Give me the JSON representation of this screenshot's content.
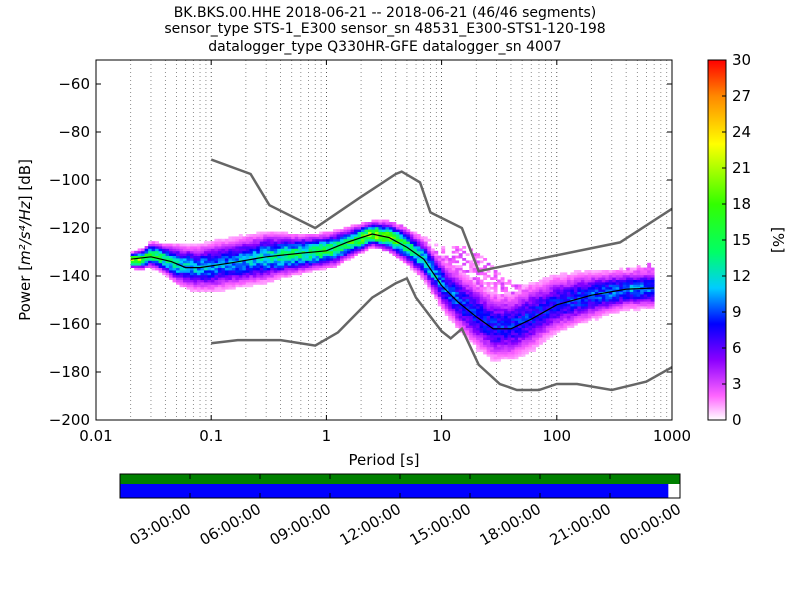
{
  "chart_data": [
    {
      "type": "heatmap",
      "title_lines": [
        "BK.BKS.00.HHE   2018-06-21 -- 2018-06-21  (46/46 segments)",
        "sensor_type STS-1_E300 sensor_sn 48531_E300-STS1-120-198",
        "datalogger_type Q330HR-GFE datalogger_sn 4007"
      ],
      "xlabel": "Period [s]",
      "ylabel_prefix": "Power [",
      "ylabel_units": "m²/s⁴/Hz",
      "ylabel_suffix": "] [dB]",
      "xscale": "log",
      "xlim": [
        0.01,
        1000
      ],
      "ylim": [
        -200,
        -50
      ],
      "xticks": [
        0.01,
        0.1,
        1,
        10,
        100,
        1000
      ],
      "xtick_labels": [
        "0.01",
        "0.1",
        "1",
        "10",
        "100",
        "1000"
      ],
      "yticks": [
        -200,
        -180,
        -160,
        -140,
        -120,
        -100,
        -80,
        -60
      ],
      "ytick_labels": [
        "−200",
        "−180",
        "−160",
        "−140",
        "−120",
        "−100",
        "−80",
        "−60"
      ],
      "grid": "dotted vertical",
      "colorbar": {
        "label": "[%]",
        "range": [
          0,
          30
        ],
        "ticks": [
          0,
          3,
          6,
          9,
          12,
          15,
          18,
          21,
          24,
          27,
          30
        ],
        "tick_labels": [
          "0",
          "3",
          "6",
          "9",
          "12",
          "15",
          "18",
          "21",
          "24",
          "27",
          "30"
        ],
        "colormap": [
          "#ffffff",
          "#ff66ff",
          "#8b00ff",
          "#0000ff",
          "#00ccff",
          "#00ff66",
          "#33ff00",
          "#ffff00",
          "#ff8800",
          "#ff0000"
        ]
      },
      "noise_models": {
        "high": {
          "color": "#666666",
          "points": [
            [
              0.1,
              -91.5
            ],
            [
              0.22,
              -97.5
            ],
            [
              0.32,
              -110.5
            ],
            [
              0.8,
              -120
            ],
            [
              2,
              -107
            ],
            [
              4,
              -97.5
            ],
            [
              4.5,
              -96.5
            ],
            [
              6.5,
              -101
            ],
            [
              8,
              -113.5
            ],
            [
              15,
              -120
            ],
            [
              21,
              -138
            ],
            [
              354,
              -126
            ],
            [
              1000,
              -112
            ]
          ]
        },
        "low": {
          "color": "#666666",
          "points": [
            [
              0.1,
              -168
            ],
            [
              0.17,
              -166.7
            ],
            [
              0.4,
              -166.7
            ],
            [
              0.8,
              -169
            ],
            [
              1.26,
              -163.5
            ],
            [
              2.5,
              -149
            ],
            [
              4,
              -143
            ],
            [
              5,
              -141
            ],
            [
              6,
              -149
            ],
            [
              10,
              -163
            ],
            [
              12,
              -166
            ],
            [
              15,
              -162
            ],
            [
              21,
              -177
            ],
            [
              32,
              -185
            ],
            [
              45,
              -187.5
            ],
            [
              70,
              -187.5
            ],
            [
              100,
              -185
            ],
            [
              150,
              -185
            ],
            [
              300,
              -187.5
            ],
            [
              600,
              -184
            ],
            [
              1000,
              -178
            ]
          ]
        },
        "mean": {
          "color": "#000000",
          "points": [
            [
              0.02,
              -133
            ],
            [
              0.03,
              -132
            ],
            [
              0.045,
              -134
            ],
            [
              0.06,
              -136.5
            ],
            [
              0.08,
              -136.5
            ],
            [
              0.15,
              -134.5
            ],
            [
              0.3,
              -132
            ],
            [
              0.6,
              -130.5
            ],
            [
              1,
              -129.5
            ],
            [
              1.5,
              -126
            ],
            [
              2.5,
              -122.5
            ],
            [
              3.5,
              -124
            ],
            [
              5,
              -128
            ],
            [
              7,
              -133
            ],
            [
              10,
              -144
            ],
            [
              14,
              -151
            ],
            [
              20,
              -157
            ],
            [
              28,
              -162
            ],
            [
              40,
              -162
            ],
            [
              60,
              -158
            ],
            [
              100,
              -152
            ],
            [
              200,
              -148
            ],
            [
              400,
              -145.5
            ],
            [
              700,
              -145
            ]
          ]
        }
      },
      "density": {
        "color_stops": [
          0,
          2,
          5,
          8,
          11,
          14,
          18,
          23,
          27,
          30
        ],
        "main_band": [
          [
            0.02,
            -133.5,
            1.5,
            22
          ],
          [
            0.025,
            -133,
            2,
            18
          ],
          [
            0.03,
            -131,
            2.5,
            16
          ],
          [
            0.04,
            -133,
            3,
            14
          ],
          [
            0.05,
            -135,
            4,
            12
          ],
          [
            0.07,
            -136.5,
            4.5,
            11
          ],
          [
            0.1,
            -136,
            5,
            10
          ],
          [
            0.15,
            -134.5,
            5,
            10
          ],
          [
            0.2,
            -133.5,
            5,
            11
          ],
          [
            0.3,
            -132,
            5,
            12
          ],
          [
            0.5,
            -131,
            4,
            14
          ],
          [
            0.8,
            -130,
            3.5,
            15
          ],
          [
            1.2,
            -128.5,
            3.5,
            15
          ],
          [
            1.7,
            -125.5,
            3,
            16
          ],
          [
            2.5,
            -122.5,
            2.5,
            20
          ],
          [
            3.5,
            -123.5,
            3,
            18
          ],
          [
            5,
            -127.5,
            3.5,
            15
          ],
          [
            7,
            -133,
            4,
            12
          ],
          [
            10,
            -143,
            5,
            10
          ],
          [
            14,
            -150,
            6,
            9
          ],
          [
            20,
            -156,
            7,
            8
          ],
          [
            28,
            -161,
            7,
            8
          ],
          [
            40,
            -161,
            7,
            8
          ],
          [
            60,
            -157,
            7,
            8
          ],
          [
            100,
            -151.5,
            6,
            8
          ],
          [
            200,
            -148,
            5,
            9
          ],
          [
            400,
            -145.5,
            4,
            10
          ],
          [
            700,
            -145,
            4,
            10
          ]
        ],
        "upper_band": [
          [
            2.5,
            -122,
            2.5,
            2
          ],
          [
            4,
            -124,
            4,
            2
          ],
          [
            6,
            -130,
            5,
            2
          ],
          [
            9,
            -134,
            5,
            2
          ],
          [
            13,
            -136,
            6,
            2
          ],
          [
            18,
            -140,
            7,
            2
          ],
          [
            25,
            -146,
            8,
            2
          ],
          [
            35,
            -152,
            7,
            2
          ],
          [
            50,
            -153,
            6,
            2
          ],
          [
            80,
            -152,
            5,
            2
          ],
          [
            150,
            -150,
            4,
            2
          ],
          [
            300,
            -145,
            4,
            2
          ],
          [
            700,
            -140,
            4,
            2
          ]
        ]
      }
    },
    {
      "type": "timeline",
      "xtick_labels": [
        "03:00:00",
        "06:00:00",
        "09:00:00",
        "12:00:00",
        "15:00:00",
        "18:00:00",
        "21:00:00",
        "00:00:00"
      ],
      "data_hours": [
        0,
        24
      ],
      "processed_hours": [
        0,
        23.5
      ],
      "data_color": "#008000",
      "processed_color": "#0000ff"
    }
  ]
}
